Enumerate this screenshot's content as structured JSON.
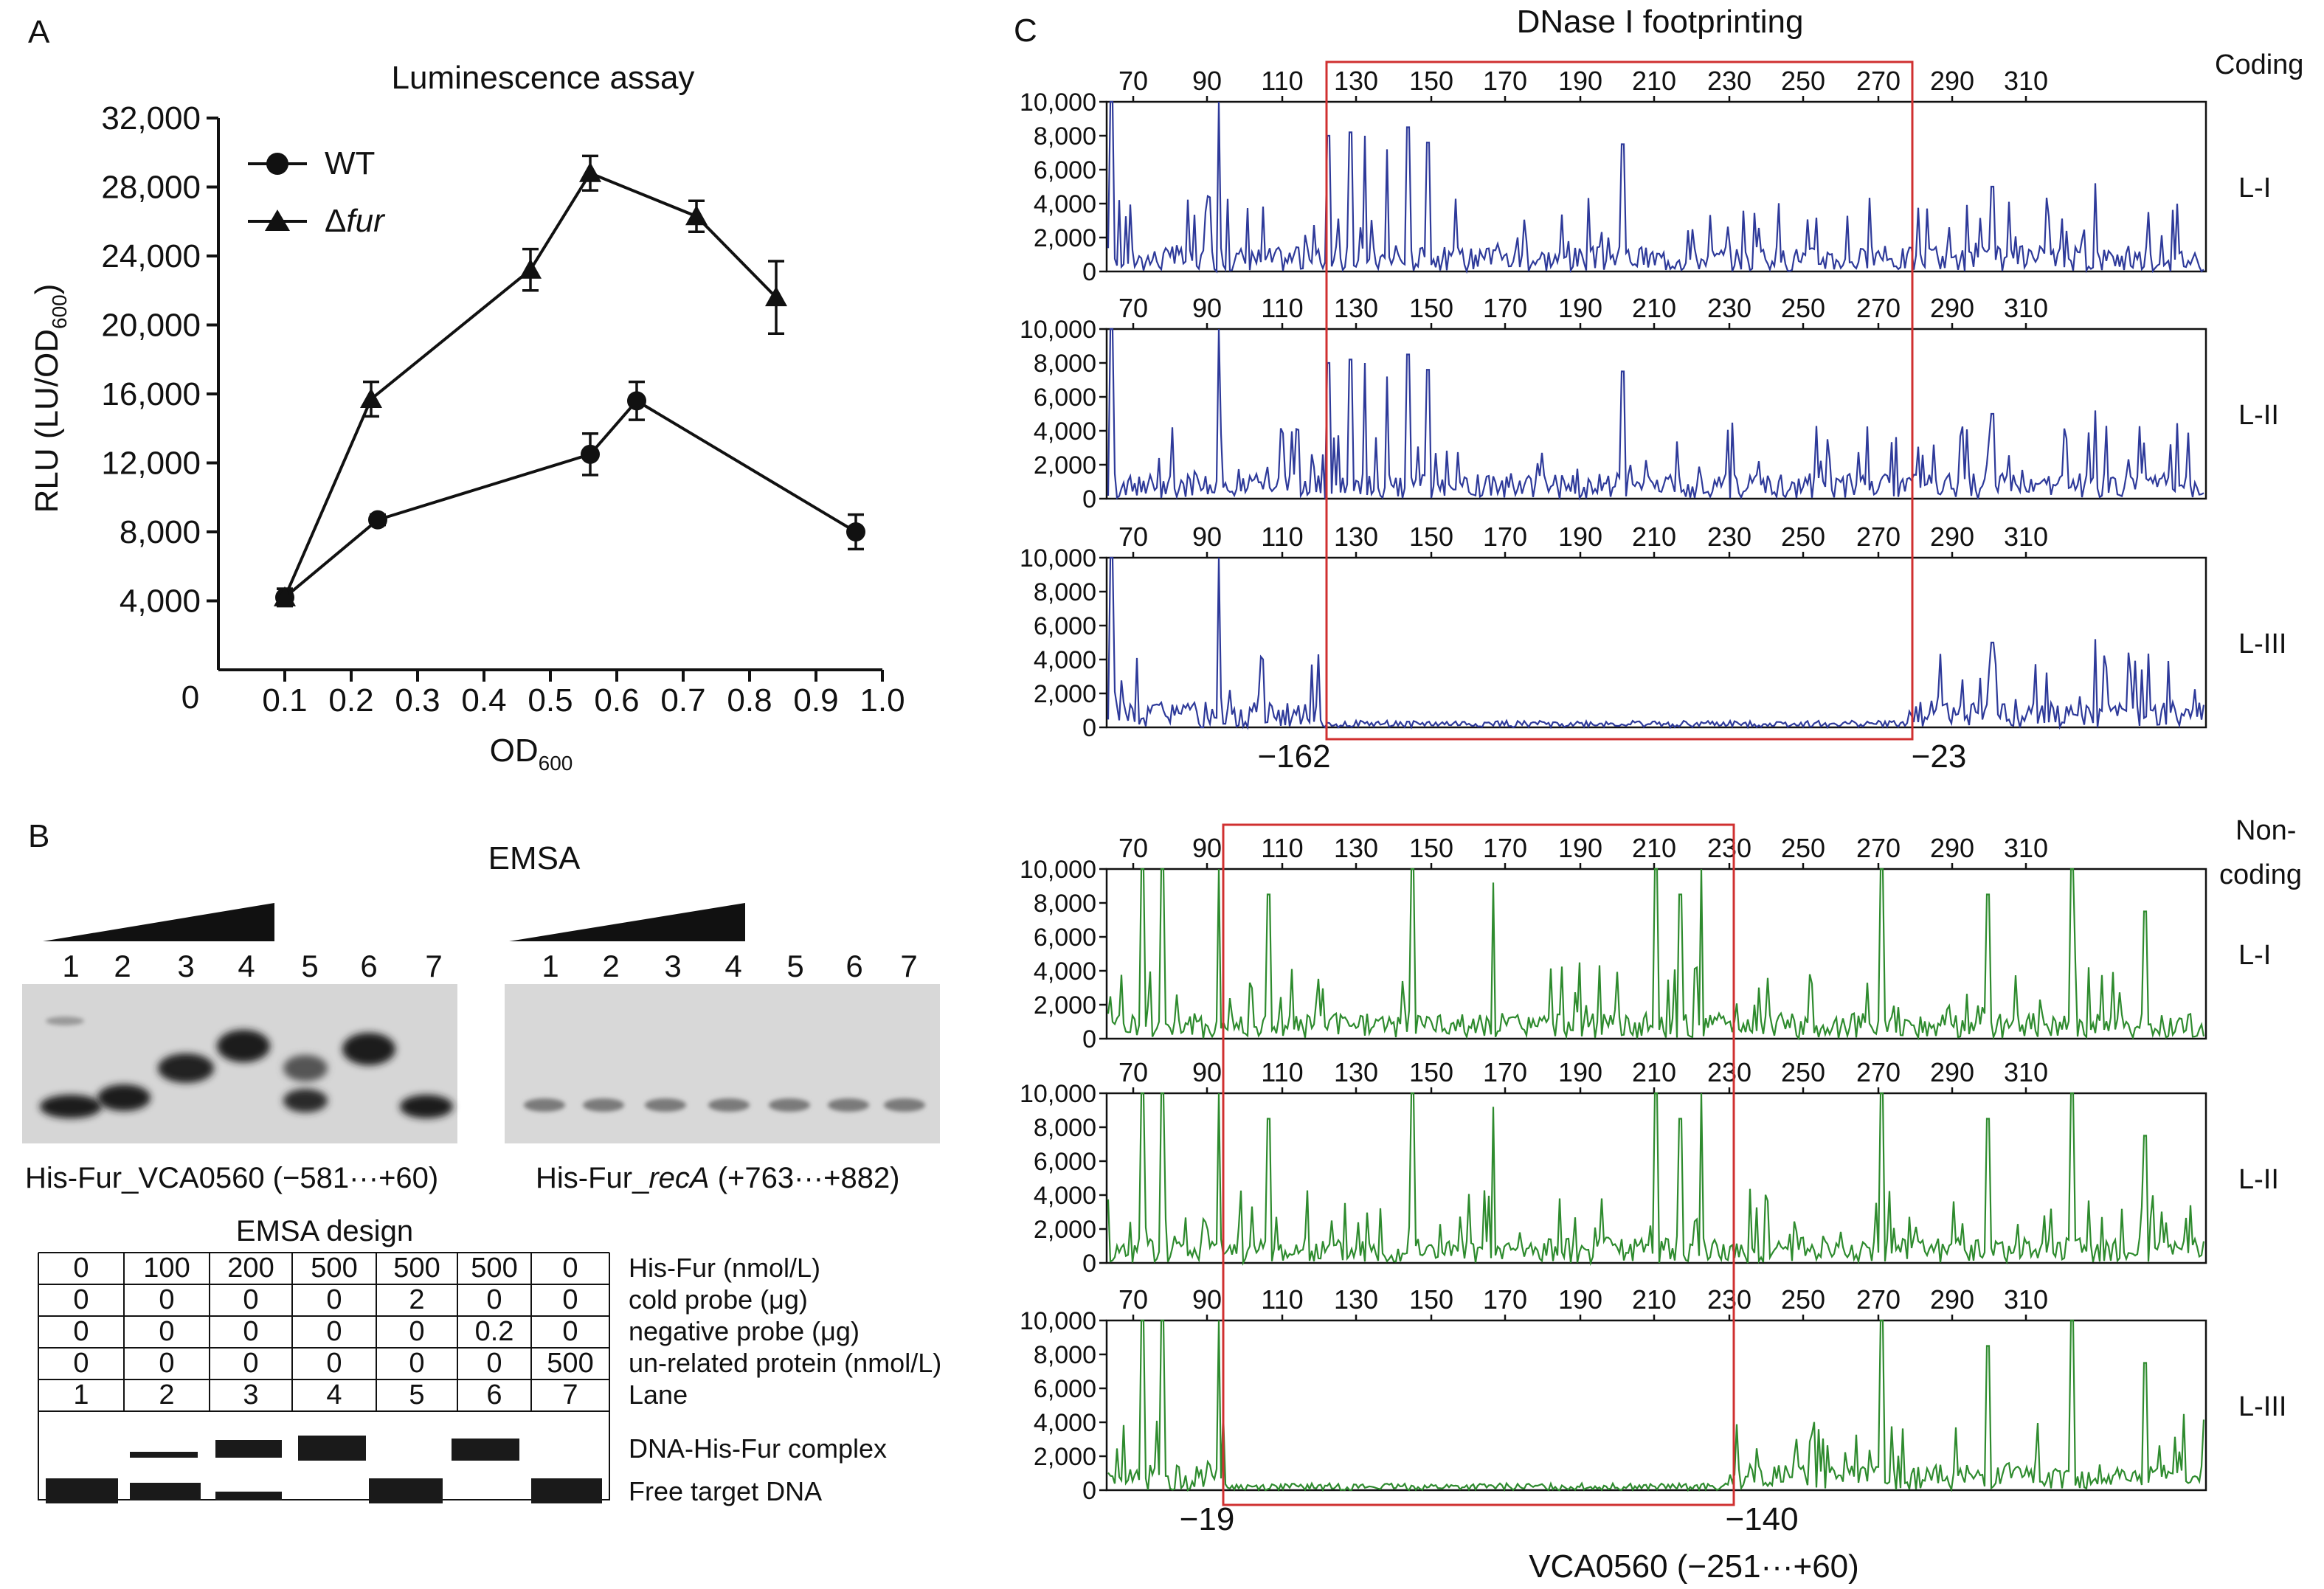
{
  "panels": {
    "A": "A",
    "B": "B",
    "C": "C"
  },
  "chart_a": {
    "type": "line",
    "title": "Luminescence assay",
    "ylabel": "RLU (LU/OD",
    "ylabel_sub": "600",
    "ylabel_end": ")",
    "xlabel": "OD",
    "xlabel_sub": "600",
    "xlim": [
      0,
      1.0
    ],
    "ylim": [
      0,
      32000
    ],
    "y_ticks": [
      4000,
      8000,
      12000,
      16000,
      20000,
      24000,
      28000,
      32000
    ],
    "y_tick_labels": [
      "4,000",
      "8,000",
      "12,000",
      "16,000",
      "20,000",
      "24,000",
      "28,000",
      "32,000"
    ],
    "x_ticks": [
      0.1,
      0.2,
      0.3,
      0.4,
      0.5,
      0.6,
      0.7,
      0.8,
      0.9,
      1.0
    ],
    "x_tick_labels": [
      "0.1",
      "0.2",
      "0.3",
      "0.4",
      "0.5",
      "0.6",
      "0.7",
      "0.8",
      "0.9",
      "1.0"
    ],
    "origin_label": "0",
    "legend_position": "top-left",
    "series": [
      {
        "name": "WT",
        "marker": "circle",
        "x": [
          0.1,
          0.24,
          0.56,
          0.63,
          0.96
        ],
        "y": [
          4200,
          8700,
          12500,
          15600,
          8000
        ],
        "err": [
          500,
          300,
          1200,
          1100,
          1000
        ]
      },
      {
        "name": "Δfur",
        "name_prefix": "Δ",
        "name_italic": "fur",
        "marker": "triangle",
        "x": [
          0.1,
          0.23,
          0.47,
          0.56,
          0.72,
          0.84
        ],
        "y": [
          4200,
          15700,
          23200,
          28800,
          26300,
          21600
        ],
        "err": [
          500,
          1000,
          1200,
          1000,
          900,
          2100
        ]
      }
    ]
  },
  "emsa": {
    "title": "EMSA",
    "lanes": [
      "1",
      "2",
      "3",
      "4",
      "5",
      "6",
      "7"
    ],
    "gel1_caption": "His-Fur_VCA0560 (−581···+60)",
    "gel2_caption_prefix": "His-Fur_",
    "gel2_caption_italic": "recA",
    "gel2_caption_suffix": " (+763···+882)",
    "design": {
      "title": "EMSA design",
      "rows": [
        {
          "values": [
            "0",
            "100",
            "200",
            "500",
            "500",
            "500",
            "0"
          ],
          "label": "His-Fur (nmol/L)"
        },
        {
          "values": [
            "0",
            "0",
            "0",
            "0",
            "2",
            "0",
            "0"
          ],
          "label": "cold probe (μg)"
        },
        {
          "values": [
            "0",
            "0",
            "0",
            "0",
            "0",
            "0.2",
            "0"
          ],
          "label": "negative probe (μg)"
        },
        {
          "values": [
            "0",
            "0",
            "0",
            "0",
            "0",
            "0",
            "500"
          ],
          "label": "un-related protein (nmol/L)"
        },
        {
          "values": [
            "1",
            "2",
            "3",
            "4",
            "5",
            "6",
            "7"
          ],
          "label": "Lane"
        }
      ],
      "complex_label": "DNA-His-Fur complex",
      "free_label": "Free target DNA"
    }
  },
  "footprint": {
    "title": "DNase I footprinting",
    "y_tick_labels": [
      "0",
      "2,000",
      "4,000",
      "6,000",
      "8,000",
      "10,000"
    ],
    "colors": {
      "coding": "#2e3a9a",
      "noncoding": "#2e8b2e",
      "box": "#d03030"
    },
    "coding": {
      "strand_label": "Coding",
      "x_tick_labels": [
        "70",
        "90",
        "110",
        "130",
        "150",
        "170",
        "190",
        "210",
        "230",
        "250",
        "270",
        "290",
        "310"
      ],
      "rows": [
        "L-I",
        "L-II",
        "L-III"
      ],
      "box_left_label": "−162",
      "box_right_label": "−23"
    },
    "noncoding": {
      "strand_label_1": "Non-",
      "strand_label_2": "coding",
      "x_tick_labels": [
        "70",
        "90",
        "110",
        "130",
        "150",
        "170",
        "190",
        "210",
        "230",
        "250",
        "270",
        "290",
        "310"
      ],
      "rows": [
        "L-I",
        "L-II",
        "L-III"
      ],
      "box_left_label": "−19",
      "box_right_label": "−140",
      "xlabel": "VCA0560 (−251···+60)"
    }
  }
}
